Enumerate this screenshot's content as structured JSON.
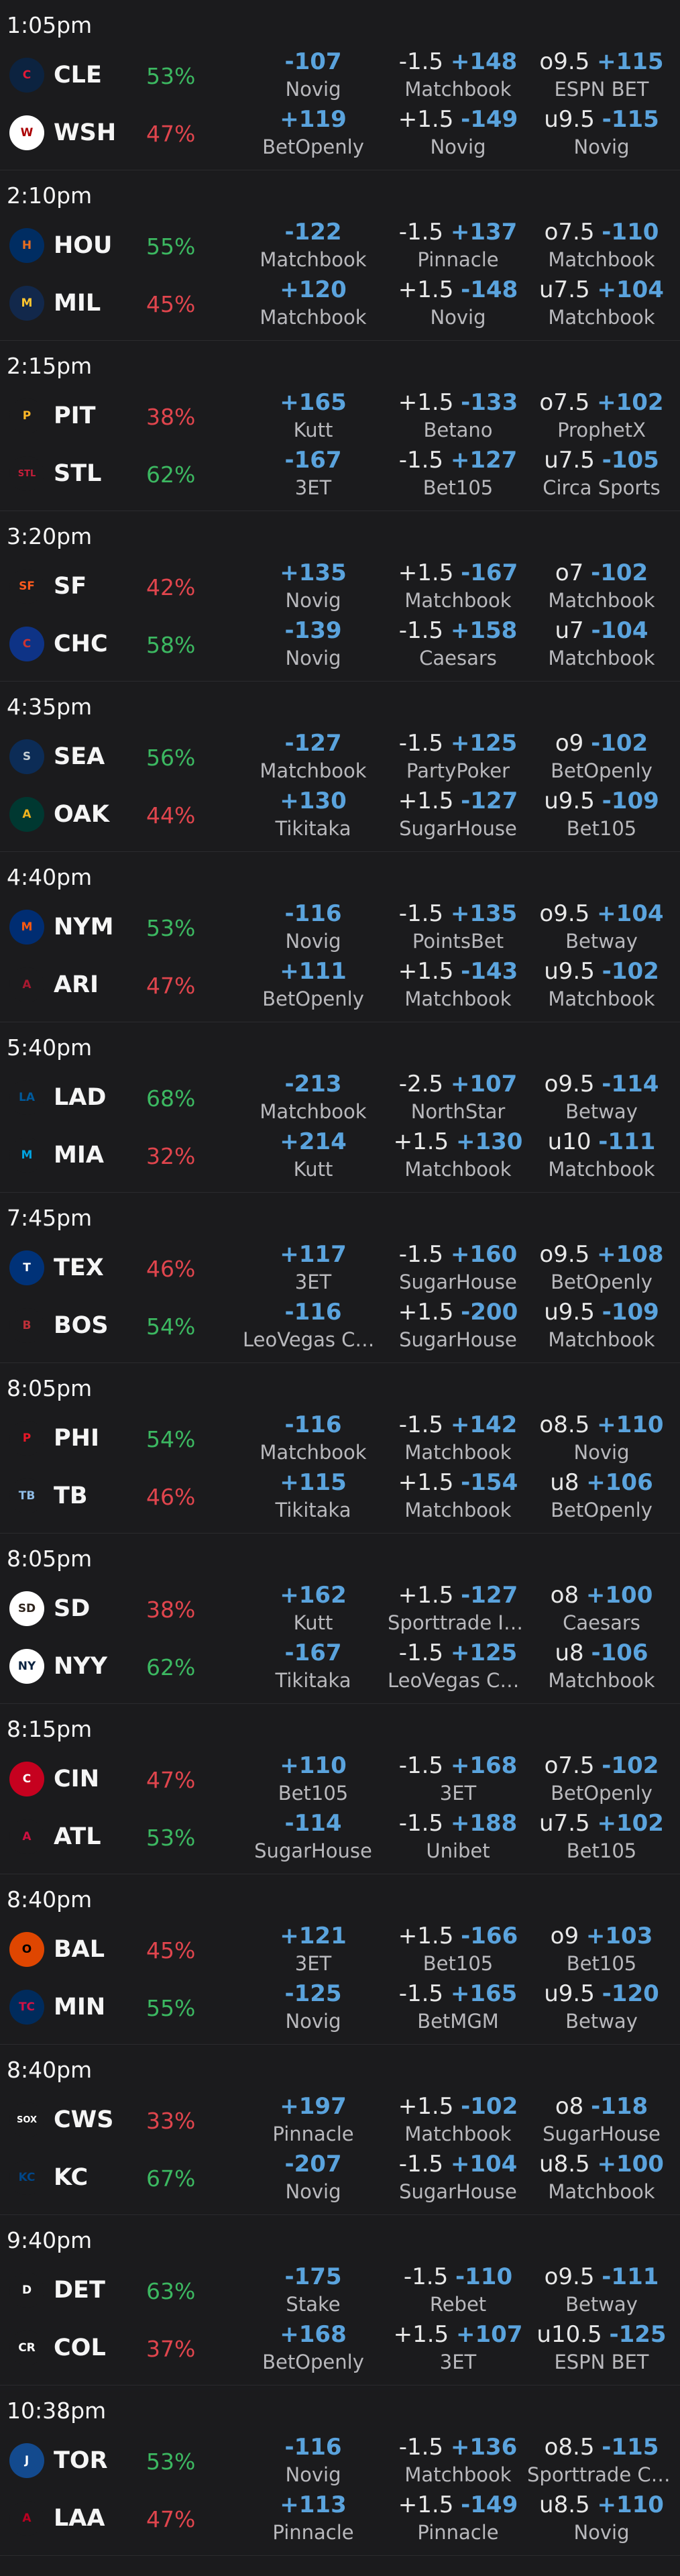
{
  "games": [
    {
      "time": "1:05pm",
      "teams": [
        {
          "abbr": "CLE",
          "pct": "53%",
          "pct_color": "green",
          "logo": "indians-c-icon",
          "logo_text": "C",
          "logo_color": "#0c2340",
          "logo_fg": "#e31937",
          "ml": {
            "price": "-107",
            "book": "Novig"
          },
          "spread": {
            "line": "-1.5",
            "price": "+148",
            "book": "Matchbook"
          },
          "total": {
            "line": "o9.5",
            "price": "+115",
            "book": "ESPN BET"
          }
        },
        {
          "abbr": "WSH",
          "pct": "47%",
          "pct_color": "red",
          "logo": "nationals-w-icon",
          "logo_text": "W",
          "logo_color": "#ffffff",
          "logo_fg": "#ab0003",
          "ml": {
            "price": "+119",
            "book": "BetOpenly"
          },
          "spread": {
            "line": "+1.5",
            "price": "-149",
            "book": "Novig"
          },
          "total": {
            "line": "u9.5",
            "price": "-115",
            "book": "Novig"
          }
        }
      ]
    },
    {
      "time": "2:10pm",
      "teams": [
        {
          "abbr": "HOU",
          "pct": "55%",
          "pct_color": "green",
          "logo": "astros-star-icon",
          "logo_text": "H",
          "logo_color": "#002d62",
          "logo_fg": "#eb6e1f",
          "ml": {
            "price": "-122",
            "book": "Matchbook"
          },
          "spread": {
            "line": "-1.5",
            "price": "+137",
            "book": "Pinnacle"
          },
          "total": {
            "line": "o7.5",
            "price": "-110",
            "book": "Matchbook"
          }
        },
        {
          "abbr": "MIL",
          "pct": "45%",
          "pct_color": "red",
          "logo": "brewers-glove-icon",
          "logo_text": "M",
          "logo_color": "#12284b",
          "logo_fg": "#ffc52f",
          "ml": {
            "price": "+120",
            "book": "Matchbook"
          },
          "spread": {
            "line": "+1.5",
            "price": "-148",
            "book": "Novig"
          },
          "total": {
            "line": "u7.5",
            "price": "+104",
            "book": "Matchbook"
          }
        }
      ]
    },
    {
      "time": "2:15pm",
      "teams": [
        {
          "abbr": "PIT",
          "pct": "38%",
          "pct_color": "red",
          "logo": "pirates-p-icon",
          "logo_text": "P",
          "logo_color": "#1b1b1d",
          "logo_fg": "#fdb827",
          "ml": {
            "price": "+165",
            "book": "Kutt"
          },
          "spread": {
            "line": "+1.5",
            "price": "-133",
            "book": "Betano"
          },
          "total": {
            "line": "o7.5",
            "price": "+102",
            "book": "ProphetX"
          }
        },
        {
          "abbr": "STL",
          "pct": "62%",
          "pct_color": "green",
          "logo": "cardinals-birds-icon",
          "logo_text": "STL",
          "logo_color": "#1b1b1d",
          "logo_fg": "#c41e3a",
          "ml": {
            "price": "-167",
            "book": "3ET"
          },
          "spread": {
            "line": "-1.5",
            "price": "+127",
            "book": "Bet105"
          },
          "total": {
            "line": "u7.5",
            "price": "-105",
            "book": "Circa Sports"
          }
        }
      ]
    },
    {
      "time": "3:20pm",
      "teams": [
        {
          "abbr": "SF",
          "pct": "42%",
          "pct_color": "red",
          "logo": "giants-sf-icon",
          "logo_text": "SF",
          "logo_color": "#1b1b1d",
          "logo_fg": "#fd5a1e",
          "ml": {
            "price": "+135",
            "book": "Novig"
          },
          "spread": {
            "line": "+1.5",
            "price": "-167",
            "book": "Matchbook"
          },
          "total": {
            "line": "o7",
            "price": "-102",
            "book": "Matchbook"
          }
        },
        {
          "abbr": "CHC",
          "pct": "58%",
          "pct_color": "green",
          "logo": "cubs-c-icon",
          "logo_text": "C",
          "logo_color": "#0e3386",
          "logo_fg": "#cc3433",
          "ml": {
            "price": "-139",
            "book": "Novig"
          },
          "spread": {
            "line": "-1.5",
            "price": "+158",
            "book": "Caesars"
          },
          "total": {
            "line": "u7",
            "price": "-104",
            "book": "Matchbook"
          }
        }
      ]
    },
    {
      "time": "4:35pm",
      "teams": [
        {
          "abbr": "SEA",
          "pct": "56%",
          "pct_color": "green",
          "logo": "mariners-compass-icon",
          "logo_text": "S",
          "logo_color": "#0c2c56",
          "logo_fg": "#c4ced4",
          "ml": {
            "price": "-127",
            "book": "Matchbook"
          },
          "spread": {
            "line": "-1.5",
            "price": "+125",
            "book": "PartyPoker"
          },
          "total": {
            "line": "o9",
            "price": "-102",
            "book": "BetOpenly"
          }
        },
        {
          "abbr": "OAK",
          "pct": "44%",
          "pct_color": "red",
          "logo": "athletics-a-icon",
          "logo_text": "A",
          "logo_color": "#003831",
          "logo_fg": "#efb21e",
          "ml": {
            "price": "+130",
            "book": "Tikitaka"
          },
          "spread": {
            "line": "+1.5",
            "price": "-127",
            "book": "SugarHouse"
          },
          "total": {
            "line": "u9.5",
            "price": "-109",
            "book": "Bet105"
          }
        }
      ]
    },
    {
      "time": "4:40pm",
      "teams": [
        {
          "abbr": "NYM",
          "pct": "53%",
          "pct_color": "green",
          "logo": "mets-icon",
          "logo_text": "M",
          "logo_color": "#002d72",
          "logo_fg": "#ff5910",
          "ml": {
            "price": "-116",
            "book": "Novig"
          },
          "spread": {
            "line": "-1.5",
            "price": "+135",
            "book": "PointsBet"
          },
          "total": {
            "line": "o9.5",
            "price": "+104",
            "book": "Betway"
          }
        },
        {
          "abbr": "ARI",
          "pct": "47%",
          "pct_color": "red",
          "logo": "diamondbacks-a-icon",
          "logo_text": "A",
          "logo_color": "#1b1b1d",
          "logo_fg": "#a71930",
          "ml": {
            "price": "+111",
            "book": "BetOpenly"
          },
          "spread": {
            "line": "+1.5",
            "price": "-143",
            "book": "Matchbook"
          },
          "total": {
            "line": "u9.5",
            "price": "-102",
            "book": "Matchbook"
          }
        }
      ]
    },
    {
      "time": "5:40pm",
      "teams": [
        {
          "abbr": "LAD",
          "pct": "68%",
          "pct_color": "green",
          "logo": "dodgers-icon",
          "logo_text": "LA",
          "logo_color": "#1b1b1d",
          "logo_fg": "#005a9c",
          "ml": {
            "price": "-213",
            "book": "Matchbook"
          },
          "spread": {
            "line": "-2.5",
            "price": "+107",
            "book": "NorthStar"
          },
          "total": {
            "line": "o9.5",
            "price": "-114",
            "book": "Betway"
          }
        },
        {
          "abbr": "MIA",
          "pct": "32%",
          "pct_color": "red",
          "logo": "marlins-icon",
          "logo_text": "M",
          "logo_color": "#1b1b1d",
          "logo_fg": "#00a3e0",
          "ml": {
            "price": "+214",
            "book": "Kutt"
          },
          "spread": {
            "line": "+1.5",
            "price": "+130",
            "book": "Matchbook"
          },
          "total": {
            "line": "u10",
            "price": "-111",
            "book": "Matchbook"
          }
        }
      ]
    },
    {
      "time": "7:45pm",
      "teams": [
        {
          "abbr": "TEX",
          "pct": "46%",
          "pct_color": "red",
          "logo": "rangers-t-icon",
          "logo_text": "T",
          "logo_color": "#003278",
          "logo_fg": "#ffffff",
          "ml": {
            "price": "+117",
            "book": "3ET"
          },
          "spread": {
            "line": "-1.5",
            "price": "+160",
            "book": "SugarHouse"
          },
          "total": {
            "line": "o9.5",
            "price": "+108",
            "book": "BetOpenly"
          }
        },
        {
          "abbr": "BOS",
          "pct": "54%",
          "pct_color": "green",
          "logo": "red-sox-icon",
          "logo_text": "B",
          "logo_color": "#1b1b1d",
          "logo_fg": "#bd3039",
          "ml": {
            "price": "-116",
            "book": "LeoVegas Can…"
          },
          "spread": {
            "line": "+1.5",
            "price": "-200",
            "book": "SugarHouse"
          },
          "total": {
            "line": "u9.5",
            "price": "-109",
            "book": "Matchbook"
          }
        }
      ]
    },
    {
      "time": "8:05pm",
      "teams": [
        {
          "abbr": "PHI",
          "pct": "54%",
          "pct_color": "green",
          "logo": "phillies-icon",
          "logo_text": "P",
          "logo_color": "#1b1b1d",
          "logo_fg": "#e81828",
          "ml": {
            "price": "-116",
            "book": "Matchbook"
          },
          "spread": {
            "line": "-1.5",
            "price": "+142",
            "book": "Matchbook"
          },
          "total": {
            "line": "o8.5",
            "price": "+110",
            "book": "Novig"
          }
        },
        {
          "abbr": "TB",
          "pct": "46%",
          "pct_color": "red",
          "logo": "rays-icon",
          "logo_text": "TB",
          "logo_color": "#1b1b1d",
          "logo_fg": "#8fbce6",
          "ml": {
            "price": "+115",
            "book": "Tikitaka"
          },
          "spread": {
            "line": "+1.5",
            "price": "-154",
            "book": "Matchbook"
          },
          "total": {
            "line": "u8",
            "price": "+106",
            "book": "BetOpenly"
          }
        }
      ]
    },
    {
      "time": "8:05pm",
      "teams": [
        {
          "abbr": "SD",
          "pct": "38%",
          "pct_color": "red",
          "logo": "padres-sd-icon",
          "logo_text": "SD",
          "logo_color": "#ffffff",
          "logo_fg": "#2f241d",
          "ml": {
            "price": "+162",
            "book": "Kutt"
          },
          "spread": {
            "line": "+1.5",
            "price": "-127",
            "book": "Sporttrade Io…"
          },
          "total": {
            "line": "o8",
            "price": "+100",
            "book": "Caesars"
          }
        },
        {
          "abbr": "NYY",
          "pct": "62%",
          "pct_color": "green",
          "logo": "yankees-icon",
          "logo_text": "NY",
          "logo_color": "#ffffff",
          "logo_fg": "#0c2340",
          "ml": {
            "price": "-167",
            "book": "Tikitaka"
          },
          "spread": {
            "line": "-1.5",
            "price": "+125",
            "book": "LeoVegas Can…"
          },
          "total": {
            "line": "u8",
            "price": "-106",
            "book": "Matchbook"
          }
        }
      ]
    },
    {
      "time": "8:15pm",
      "teams": [
        {
          "abbr": "CIN",
          "pct": "47%",
          "pct_color": "red",
          "logo": "reds-icon",
          "logo_text": "C",
          "logo_color": "#c6011f",
          "logo_fg": "#ffffff",
          "ml": {
            "price": "+110",
            "book": "Bet105"
          },
          "spread": {
            "line": "-1.5",
            "price": "+168",
            "book": "3ET"
          },
          "total": {
            "line": "o7.5",
            "price": "-102",
            "book": "BetOpenly"
          }
        },
        {
          "abbr": "ATL",
          "pct": "53%",
          "pct_color": "green",
          "logo": "braves-a-icon",
          "logo_text": "A",
          "logo_color": "#1b1b1d",
          "logo_fg": "#ce1141",
          "ml": {
            "price": "-114",
            "book": "SugarHouse"
          },
          "spread": {
            "line": "-1.5",
            "price": "+188",
            "book": "Unibet"
          },
          "total": {
            "line": "u7.5",
            "price": "+102",
            "book": "Bet105"
          }
        }
      ]
    },
    {
      "time": "8:40pm",
      "teams": [
        {
          "abbr": "BAL",
          "pct": "45%",
          "pct_color": "red",
          "logo": "orioles-bird-icon",
          "logo_text": "O",
          "logo_color": "#df4601",
          "logo_fg": "#000000",
          "ml": {
            "price": "+121",
            "book": "3ET"
          },
          "spread": {
            "line": "+1.5",
            "price": "-166",
            "book": "Bet105"
          },
          "total": {
            "line": "o9",
            "price": "+103",
            "book": "Bet105"
          }
        },
        {
          "abbr": "MIN",
          "pct": "55%",
          "pct_color": "green",
          "logo": "twins-icon",
          "logo_text": "TC",
          "logo_color": "#002b5c",
          "logo_fg": "#d31145",
          "ml": {
            "price": "-125",
            "book": "Novig"
          },
          "spread": {
            "line": "-1.5",
            "price": "+165",
            "book": "BetMGM"
          },
          "total": {
            "line": "u9.5",
            "price": "-120",
            "book": "Betway"
          }
        }
      ]
    },
    {
      "time": "8:40pm",
      "teams": [
        {
          "abbr": "CWS",
          "pct": "33%",
          "pct_color": "red",
          "logo": "white-sox-icon",
          "logo_text": "SOX",
          "logo_color": "#1b1b1d",
          "logo_fg": "#ffffff",
          "ml": {
            "price": "+197",
            "book": "Pinnacle"
          },
          "spread": {
            "line": "+1.5",
            "price": "-102",
            "book": "Matchbook"
          },
          "total": {
            "line": "o8",
            "price": "-118",
            "book": "SugarHouse"
          }
        },
        {
          "abbr": "KC",
          "pct": "67%",
          "pct_color": "green",
          "logo": "royals-kc-icon",
          "logo_text": "KC",
          "logo_color": "#1b1b1d",
          "logo_fg": "#004687",
          "ml": {
            "price": "-207",
            "book": "Novig"
          },
          "spread": {
            "line": "-1.5",
            "price": "+104",
            "book": "SugarHouse"
          },
          "total": {
            "line": "u8.5",
            "price": "+100",
            "book": "Matchbook"
          }
        }
      ]
    },
    {
      "time": "9:40pm",
      "teams": [
        {
          "abbr": "DET",
          "pct": "63%",
          "pct_color": "green",
          "logo": "tigers-d-icon",
          "logo_text": "D",
          "logo_color": "#1b1b1d",
          "logo_fg": "#ffffff",
          "ml": {
            "price": "-175",
            "book": "Stake"
          },
          "spread": {
            "line": "-1.5",
            "price": "-110",
            "book": "Rebet"
          },
          "total": {
            "line": "o9.5",
            "price": "-111",
            "book": "Betway"
          }
        },
        {
          "abbr": "COL",
          "pct": "37%",
          "pct_color": "red",
          "logo": "rockies-cr-icon",
          "logo_text": "CR",
          "logo_color": "#1b1b1d",
          "logo_fg": "#ffffff",
          "ml": {
            "price": "+168",
            "book": "BetOpenly"
          },
          "spread": {
            "line": "+1.5",
            "price": "+107",
            "book": "3ET"
          },
          "total": {
            "line": "u10.5",
            "price": "-125",
            "book": "ESPN BET"
          }
        }
      ]
    },
    {
      "time": "10:38pm",
      "teams": [
        {
          "abbr": "TOR",
          "pct": "53%",
          "pct_color": "green",
          "logo": "blue-jays-icon",
          "logo_text": "J",
          "logo_color": "#134a8e",
          "logo_fg": "#ffffff",
          "ml": {
            "price": "-116",
            "book": "Novig"
          },
          "spread": {
            "line": "-1.5",
            "price": "+136",
            "book": "Matchbook"
          },
          "total": {
            "line": "o8.5",
            "price": "-115",
            "book": "Sporttrade Co…"
          }
        },
        {
          "abbr": "LAA",
          "pct": "47%",
          "pct_color": "red",
          "logo": "angels-a-icon",
          "logo_text": "A",
          "logo_color": "#1b1b1d",
          "logo_fg": "#ba0021",
          "ml": {
            "price": "+113",
            "book": "Pinnacle"
          },
          "spread": {
            "line": "+1.5",
            "price": "-149",
            "book": "Pinnacle"
          },
          "total": {
            "line": "u8.5",
            "price": "+110",
            "book": "Novig"
          }
        }
      ]
    }
  ]
}
